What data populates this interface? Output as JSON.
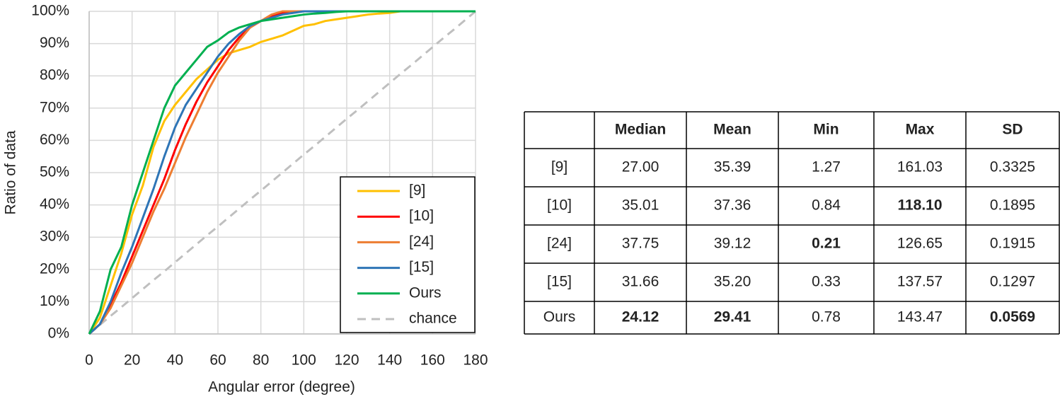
{
  "chart_data": {
    "type": "line",
    "x_label": "Angular error (degree)",
    "y_label": "Ratio of data",
    "x": [
      0,
      5,
      10,
      15,
      20,
      25,
      30,
      35,
      40,
      45,
      50,
      55,
      60,
      65,
      70,
      75,
      80,
      85,
      90,
      95,
      100,
      105,
      110,
      115,
      120,
      125,
      130,
      135,
      140,
      145,
      150,
      155,
      160,
      165,
      170,
      175,
      180
    ],
    "series": [
      {
        "name": "[9]",
        "color": "#ffc000",
        "values": [
          0,
          5,
          15,
          25,
          37,
          46,
          58,
          66,
          71,
          75,
          79,
          82,
          85,
          87,
          88,
          89,
          90.5,
          91.5,
          92.5,
          94,
          95.5,
          96,
          97,
          97.5,
          98,
          98.5,
          99,
          99.3,
          99.5,
          100,
          100,
          100,
          100,
          100,
          100,
          100,
          100
        ]
      },
      {
        "name": "[10]",
        "color": "#ff0000",
        "values": [
          0,
          3,
          9,
          16,
          24,
          32,
          40,
          48,
          57,
          65,
          72,
          78,
          83,
          88,
          92,
          95,
          97,
          98.5,
          99.5,
          100,
          100,
          100,
          100,
          100,
          100,
          100,
          100,
          100,
          100,
          100,
          100,
          100,
          100,
          100,
          100,
          100,
          100
        ]
      },
      {
        "name": "[24]",
        "color": "#ed7d31",
        "values": [
          0,
          3,
          8,
          15,
          22,
          30,
          38,
          45,
          53,
          61,
          68,
          75,
          81,
          86,
          91,
          95,
          97,
          99,
          100,
          100,
          100,
          100,
          100,
          100,
          100,
          100,
          100,
          100,
          100,
          100,
          100,
          100,
          100,
          100,
          100,
          100,
          100
        ]
      },
      {
        "name": "[15]",
        "color": "#2e75b6",
        "values": [
          0,
          3,
          10,
          19,
          27,
          36,
          45,
          55,
          64,
          71,
          76,
          81,
          86,
          90,
          93,
          95.5,
          97,
          98,
          99,
          99.5,
          100,
          100,
          100,
          100,
          100,
          100,
          100,
          100,
          100,
          100,
          100,
          100,
          100,
          100,
          100,
          100,
          100
        ]
      },
      {
        "name": "Ours",
        "color": "#00b050",
        "values": [
          0,
          7,
          20,
          27,
          40,
          50,
          60,
          70,
          77,
          81,
          85,
          89,
          91,
          93.5,
          95,
          96,
          97,
          97.5,
          98,
          98.5,
          99,
          99.3,
          99.5,
          99.8,
          100,
          100,
          100,
          100,
          100,
          100,
          100,
          100,
          100,
          100,
          100,
          100,
          100
        ]
      },
      {
        "name": "chance",
        "color": "#bfbfbf",
        "dash": true,
        "values": [
          0,
          2.8,
          5.6,
          8.3,
          11.1,
          13.9,
          16.7,
          19.4,
          22.2,
          25,
          27.8,
          30.6,
          33.3,
          36.1,
          38.9,
          41.7,
          44.4,
          47.2,
          50,
          52.8,
          55.6,
          58.3,
          61.1,
          63.9,
          66.7,
          69.4,
          72.2,
          75,
          77.8,
          80.6,
          83.3,
          86.1,
          88.9,
          91.7,
          94.4,
          97.2,
          100
        ]
      }
    ],
    "xlim": [
      0,
      180
    ],
    "xticks": [
      0,
      20,
      40,
      60,
      80,
      100,
      120,
      140,
      160,
      180
    ],
    "ylim": [
      0,
      100
    ],
    "yticks": [
      {
        "value": 0,
        "label": "0%"
      },
      {
        "value": 10,
        "label": "10%"
      },
      {
        "value": 20,
        "label": "20%"
      },
      {
        "value": 30,
        "label": "30%"
      },
      {
        "value": 40,
        "label": "40%"
      },
      {
        "value": 50,
        "label": "50%"
      },
      {
        "value": 60,
        "label": "60%"
      },
      {
        "value": 70,
        "label": "70%"
      },
      {
        "value": 80,
        "label": "80%"
      },
      {
        "value": 90,
        "label": "90%"
      },
      {
        "value": 100,
        "label": "100%"
      }
    ],
    "grid": true,
    "legend": "lower right"
  },
  "table": {
    "header": [
      "Median",
      "Mean",
      "Min",
      "Max",
      "SD"
    ],
    "rows": [
      [
        "[9]",
        "27.00",
        "35.39",
        "1.27",
        "161.03",
        "0.3325"
      ],
      [
        "[10]",
        "35.01",
        "37.36",
        "0.84",
        "118.10",
        "0.1895"
      ],
      [
        "[24]",
        "37.75",
        "39.12",
        "0.21",
        "126.65",
        "0.1915"
      ],
      [
        "[15]",
        "31.66",
        "35.20",
        "0.33",
        "137.57",
        "0.1297"
      ],
      [
        "Ours",
        "24.12",
        "29.41",
        "0.78",
        "143.47",
        "0.0569"
      ]
    ],
    "bold": [
      [
        1,
        4
      ],
      [
        2,
        3
      ],
      [
        4,
        1
      ],
      [
        4,
        2
      ],
      [
        4,
        5
      ]
    ]
  }
}
